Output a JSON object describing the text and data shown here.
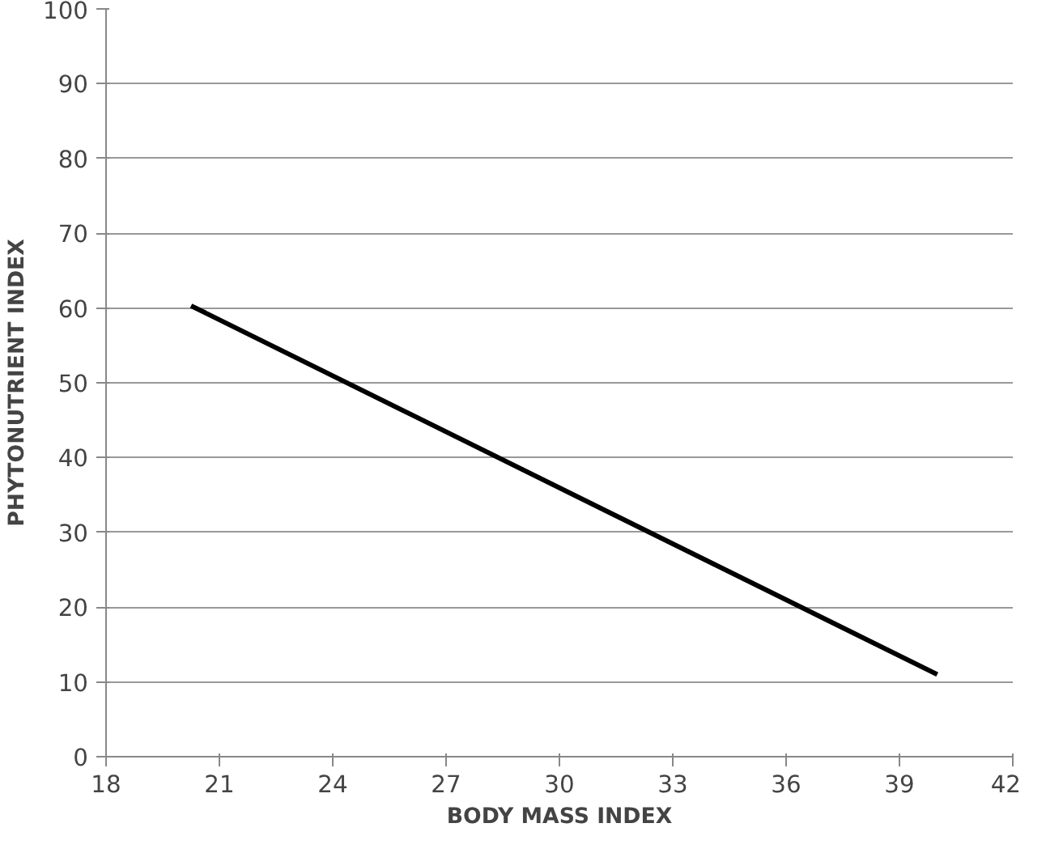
{
  "chart_data": {
    "type": "line",
    "xlabel": "BODY MASS INDEX",
    "ylabel": "PHYTONUTRIENT INDEX",
    "x": [
      20.25,
      40
    ],
    "series": [
      {
        "color": "#000000",
        "values": [
          60.3,
          11
        ]
      }
    ],
    "xlim": [
      18,
      42
    ],
    "xticks": [
      18,
      21,
      24,
      27,
      30,
      33,
      36,
      39,
      42
    ],
    "ylim": [
      0,
      100
    ],
    "yticks": [
      0,
      10,
      20,
      30,
      40,
      50,
      60,
      70,
      80,
      90,
      100
    ],
    "grid": "y",
    "marker": "none",
    "line_style": "solid"
  }
}
